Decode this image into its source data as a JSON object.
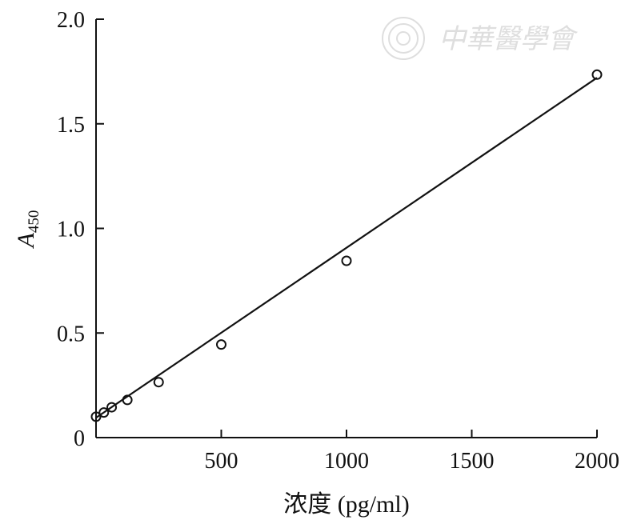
{
  "chart_data": {
    "type": "scatter",
    "xlabel": "浓度 (pg/ml)",
    "ylabel_main": "A",
    "ylabel_sub": "450",
    "xlim": [
      0,
      2000
    ],
    "ylim": [
      0,
      2.0
    ],
    "xticks": [
      500,
      1000,
      1500,
      2000
    ],
    "xtick_labels": [
      "500",
      "1000",
      "1500",
      "2000"
    ],
    "yticks": [
      0,
      0.5,
      1.0,
      1.5,
      2.0
    ],
    "ytick_labels": [
      "0",
      "0.5",
      "1.0",
      "1.5",
      "2.0"
    ],
    "grid": false,
    "series": [
      {
        "x": [
          0,
          31.25,
          62.5,
          125,
          250,
          500,
          1000,
          2000
        ],
        "y": [
          0.1,
          0.12,
          0.145,
          0.18,
          0.265,
          0.445,
          0.845,
          1.735
        ]
      }
    ],
    "fit_line": {
      "x": [
        0,
        2000
      ],
      "y": [
        0.095,
        1.72
      ]
    }
  },
  "watermark": {
    "text": "中華醫學會"
  }
}
